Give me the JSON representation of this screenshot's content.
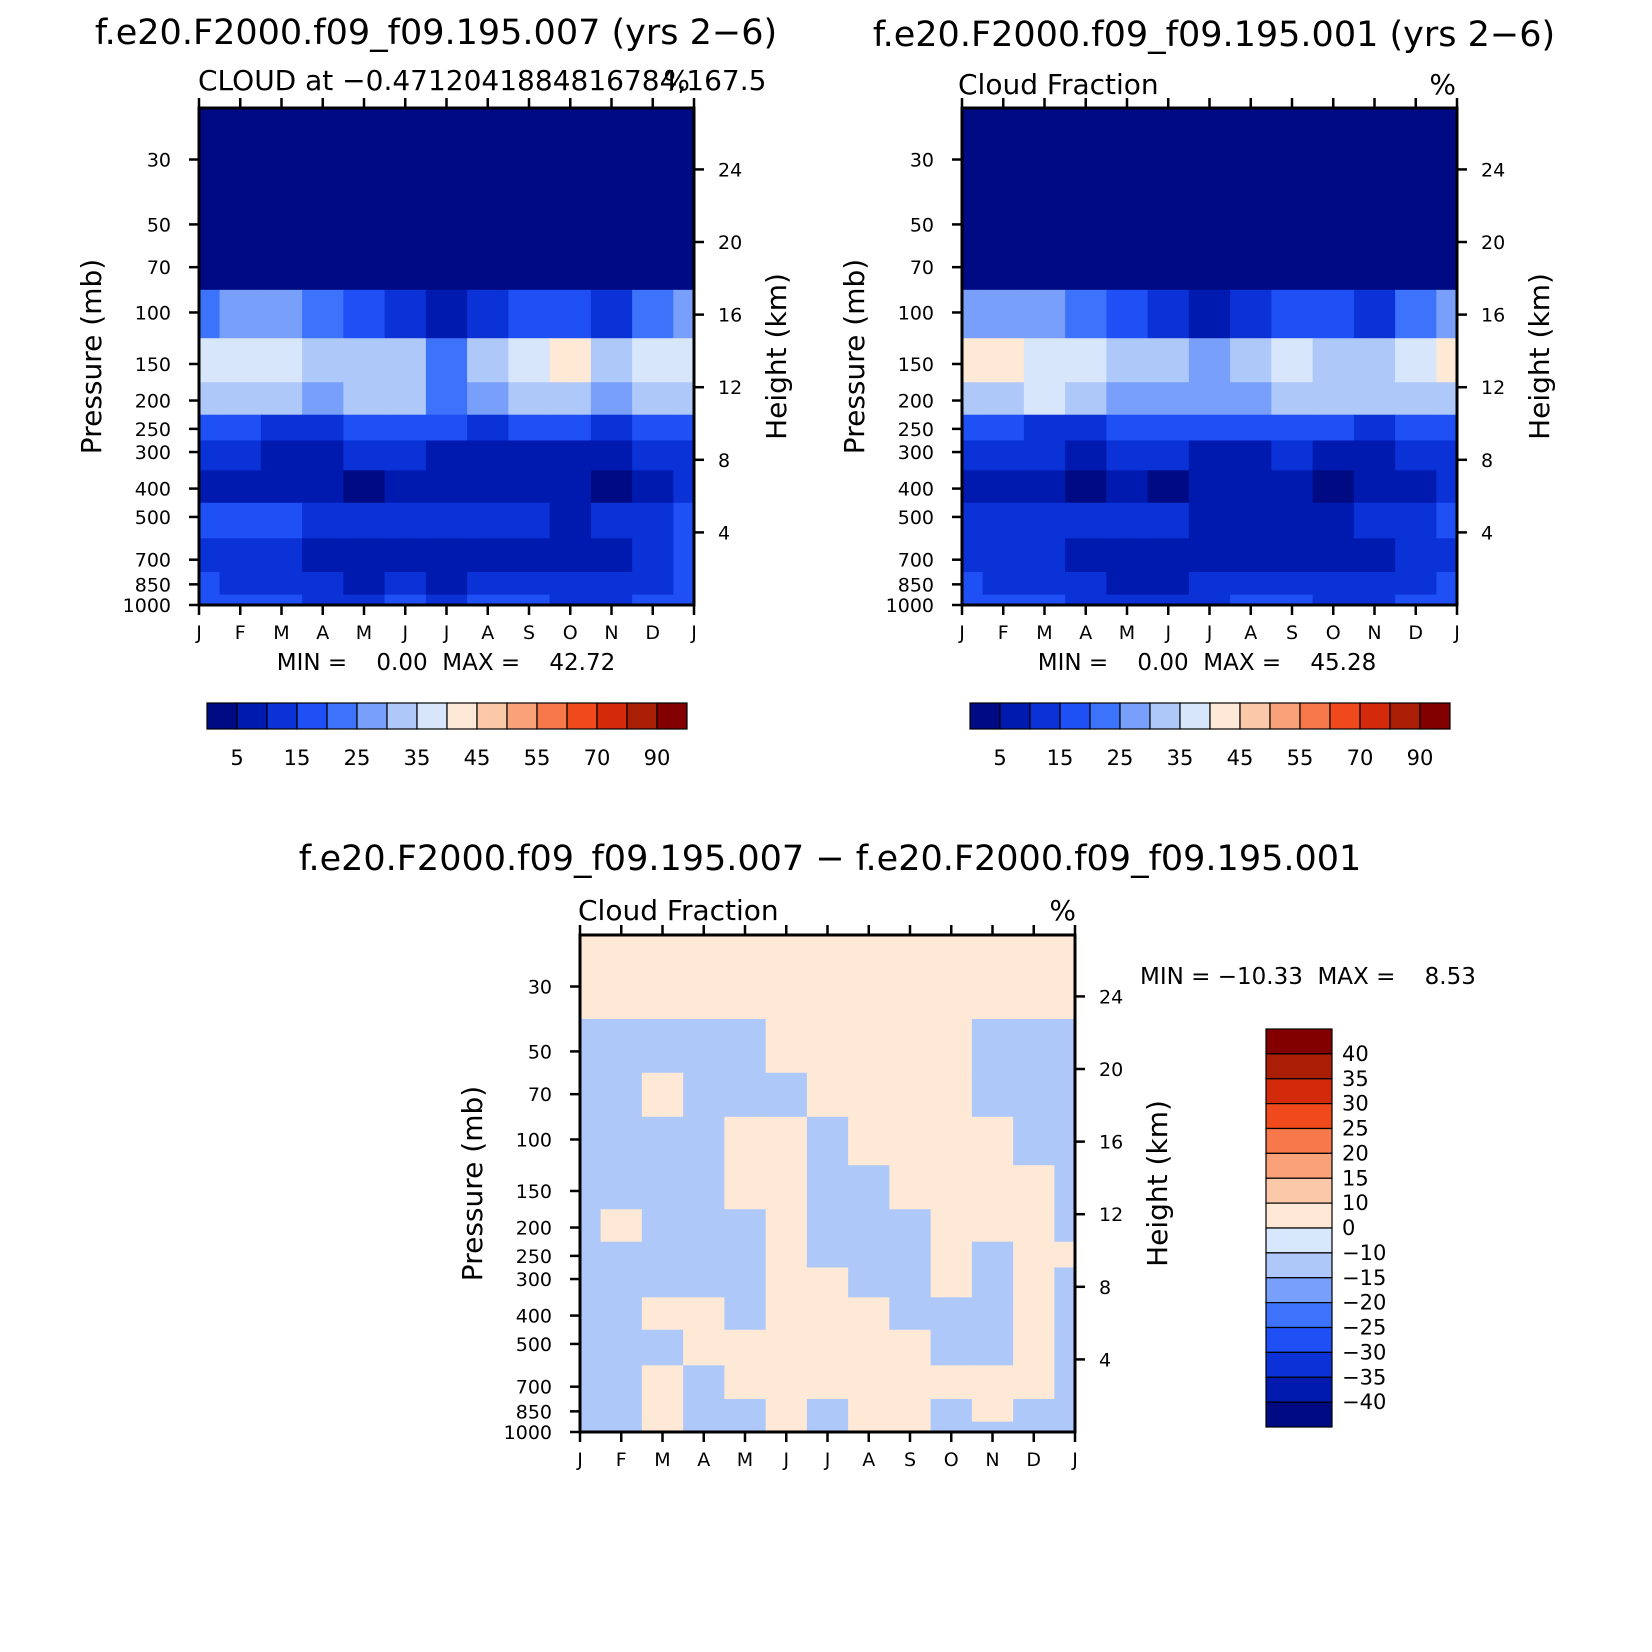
{
  "figure_titles": {
    "panel_a": "f.e20.F2000.f09_f09.195.007 (yrs 2−6)",
    "panel_b": "f.e20.F2000.f09_f09.195.001 (yrs 2−6)",
    "panel_c": "f.e20.F2000.f09_f09.195.007 − f.e20.F2000.f09_f09.195.001"
  },
  "colors": {
    "abs_scale": [
      "#000a82",
      "#001aaf",
      "#0a32d7",
      "#1e50f5",
      "#3c73fa",
      "#78a0fa",
      "#afc8fa",
      "#d7e6fa",
      "#fde9d6",
      "#fbc8aa",
      "#f9a27a",
      "#f7784a",
      "#f04a1c",
      "#d22a0a",
      "#aa1e05",
      "#820000"
    ],
    "diff_scale": [
      "#000a82",
      "#001aaf",
      "#0a32d7",
      "#1e50f5",
      "#3c73fa",
      "#78a0fa",
      "#afc8fa",
      "#d7e8fc",
      "#fde9d6",
      "#fbc8aa",
      "#f9a27a",
      "#f7784a",
      "#f04a1c",
      "#d22a0a",
      "#aa1e05",
      "#820000"
    ]
  },
  "chart_data": [
    {
      "type": "heatmap",
      "title": "f.e20.F2000.f09_f09.195.007 (yrs 2−6)",
      "subtitle_left": "CLOUD at −0.4712041884816784,167.5",
      "subtitle_right": "%",
      "xlabel": "",
      "ylabel": "Pressure (mb)",
      "ylabel_right": "Height (km)",
      "x_ticks": [
        "J",
        "F",
        "M",
        "A",
        "M",
        "J",
        "J",
        "A",
        "S",
        "O",
        "N",
        "D",
        "J"
      ],
      "y_ticks": [
        "30",
        "50",
        "70",
        "100",
        "150",
        "200",
        "250",
        "300",
        "400",
        "500",
        "700",
        "850",
        "1000"
      ],
      "y_ticks_right": [
        "24",
        "20",
        "16",
        "12",
        "8",
        "4"
      ],
      "ylim": [
        1000,
        20
      ],
      "stats": "MIN =    0.00  MAX =    42.72",
      "min": 0.0,
      "max": 42.72,
      "colorbar_labels": [
        "5",
        "15",
        "25",
        "35",
        "45",
        "55",
        "70",
        "90"
      ],
      "colorbar_levels": [
        0,
        5,
        10,
        15,
        20,
        25,
        30,
        35,
        40,
        45,
        50,
        55,
        60,
        70,
        80,
        90
      ],
      "values": [
        [
          0,
          0,
          0,
          0,
          0,
          0,
          0,
          0,
          0,
          0,
          0,
          0,
          0
        ],
        [
          0,
          0,
          0,
          0,
          0,
          0,
          0,
          0,
          0,
          0,
          0,
          0,
          0
        ],
        [
          3,
          3,
          3,
          2,
          0,
          0,
          0,
          0,
          0,
          0,
          0,
          3,
          4
        ],
        [
          24,
          26,
          25,
          21,
          16,
          11,
          8,
          12,
          16,
          17,
          12,
          21,
          28
        ],
        [
          36,
          39,
          35,
          31,
          31,
          31,
          22,
          31,
          37,
          41,
          30,
          36,
          37
        ],
        [
          30,
          33,
          31,
          29,
          30,
          30,
          22,
          25,
          30,
          32,
          28,
          33,
          30
        ],
        [
          16,
          16,
          14,
          14,
          16,
          16,
          15,
          14,
          15,
          15,
          14,
          15,
          16
        ],
        [
          10,
          10,
          9,
          9,
          10,
          10,
          9,
          9,
          9,
          9,
          8,
          10,
          11
        ],
        [
          8,
          9,
          8,
          7,
          3,
          8,
          9,
          9,
          9,
          6,
          3,
          8,
          11
        ],
        [
          15,
          17,
          16,
          13,
          11,
          13,
          12,
          11,
          11,
          9,
          10,
          14,
          18
        ],
        [
          14,
          14,
          12,
          9,
          7,
          7,
          7,
          7,
          7,
          7,
          9,
          12,
          15
        ],
        [
          15,
          14,
          13,
          10,
          9,
          11,
          9,
          11,
          12,
          10,
          10,
          13,
          15
        ],
        [
          16,
          16,
          15,
          14,
          14,
          15,
          14,
          15,
          15,
          14,
          14,
          15,
          16
        ]
      ]
    },
    {
      "type": "heatmap",
      "title": "f.e20.F2000.f09_f09.195.001 (yrs 2−6)",
      "subtitle_left": "Cloud Fraction",
      "subtitle_right": "%",
      "xlabel": "",
      "ylabel": "Pressure (mb)",
      "ylabel_right": "Height (km)",
      "x_ticks": [
        "J",
        "F",
        "M",
        "A",
        "M",
        "J",
        "J",
        "A",
        "S",
        "O",
        "N",
        "D",
        "J"
      ],
      "y_ticks": [
        "30",
        "50",
        "70",
        "100",
        "150",
        "200",
        "250",
        "300",
        "400",
        "500",
        "700",
        "850",
        "1000"
      ],
      "y_ticks_right": [
        "24",
        "20",
        "16",
        "12",
        "8",
        "4"
      ],
      "ylim": [
        1000,
        20
      ],
      "stats": "MIN =    0.00  MAX =    45.28",
      "min": 0.0,
      "max": 45.28,
      "colorbar_labels": [
        "5",
        "15",
        "25",
        "35",
        "45",
        "55",
        "70",
        "90"
      ],
      "colorbar_levels": [
        0,
        5,
        10,
        15,
        20,
        25,
        30,
        35,
        40,
        45,
        50,
        55,
        60,
        70,
        80,
        90
      ],
      "values": [
        [
          0,
          0,
          0,
          0,
          0,
          0,
          0,
          0,
          0,
          0,
          0,
          0,
          0
        ],
        [
          0,
          0,
          0,
          0,
          0,
          0,
          0,
          0,
          0,
          0,
          0,
          0,
          0
        ],
        [
          3,
          3,
          3,
          2,
          0,
          0,
          0,
          0,
          0,
          0,
          0,
          3,
          4
        ],
        [
          27,
          28,
          26,
          22,
          16,
          10,
          8,
          11,
          17,
          15,
          12,
          21,
          29
        ],
        [
          41,
          41,
          36,
          35,
          30,
          30,
          28,
          30,
          36,
          34,
          31,
          36,
          41
        ],
        [
          33,
          33,
          35,
          32,
          28,
          29,
          28,
          29,
          34,
          33,
          30,
          33,
          33
        ],
        [
          17,
          16,
          14,
          14,
          16,
          16,
          15,
          15,
          15,
          15,
          14,
          15,
          17
        ],
        [
          10,
          11,
          10,
          9,
          10,
          10,
          9,
          9,
          10,
          9,
          9,
          10,
          11
        ],
        [
          9,
          9,
          7,
          3,
          7,
          3,
          8,
          9,
          8,
          3,
          7,
          9,
          11
        ],
        [
          14,
          14,
          13,
          12,
          10,
          10,
          9,
          9,
          9,
          9,
          10,
          13,
          16
        ],
        [
          14,
          13,
          11,
          8,
          6,
          6,
          7,
          7,
          7,
          7,
          8,
          11,
          14
        ],
        [
          15,
          14,
          13,
          10,
          9,
          9,
          11,
          11,
          12,
          10,
          11,
          13,
          15
        ],
        [
          16,
          16,
          15,
          14,
          14,
          14,
          14,
          15,
          15,
          14,
          14,
          15,
          16
        ]
      ]
    },
    {
      "type": "heatmap",
      "title": "f.e20.F2000.f09_f09.195.007 − f.e20.F2000.f09_f09.195.001",
      "subtitle_left": "Cloud Fraction",
      "subtitle_right": "%",
      "xlabel": "",
      "ylabel": "Pressure (mb)",
      "ylabel_right": "Height (km)",
      "x_ticks": [
        "J",
        "F",
        "M",
        "A",
        "M",
        "J",
        "J",
        "A",
        "S",
        "O",
        "N",
        "D",
        "J"
      ],
      "y_ticks": [
        "30",
        "50",
        "70",
        "100",
        "150",
        "200",
        "250",
        "300",
        "400",
        "500",
        "700",
        "850",
        "1000"
      ],
      "y_ticks_right": [
        "24",
        "20",
        "16",
        "12",
        "8",
        "4"
      ],
      "ylim": [
        1000,
        20
      ],
      "stats": "MIN = −10.33  MAX =    8.53",
      "min": -10.33,
      "max": 8.53,
      "colorbar_labels": [
        "40",
        "35",
        "30",
        "25",
        "20",
        "15",
        "10",
        "0",
        "−10",
        "−15",
        "−20",
        "−25",
        "−30",
        "−35",
        "−40"
      ],
      "colorbar_levels": [
        -40,
        -35,
        -30,
        -25,
        -20,
        -15,
        -10,
        0,
        10,
        15,
        20,
        25,
        30,
        35,
        40
      ],
      "values": [
        [
          1,
          1,
          1,
          1,
          1,
          1,
          1,
          1,
          1,
          1,
          1,
          1,
          1
        ],
        [
          -1,
          -1,
          -1,
          -1,
          -1,
          1,
          1,
          1,
          1,
          1,
          -1,
          -1,
          -1
        ],
        [
          -1,
          -1,
          1,
          -1,
          -1,
          -1,
          1,
          1,
          1,
          1,
          -1,
          -1,
          -1
        ],
        [
          -1,
          -1,
          -1,
          -1,
          1,
          1,
          -1,
          1,
          1,
          1,
          1,
          -1,
          -1
        ],
        [
          -1,
          -1,
          -1,
          -1,
          1,
          1,
          -1,
          -1,
          1,
          1,
          1,
          1,
          -1
        ],
        [
          -1,
          1,
          -1,
          -1,
          -1,
          1,
          -1,
          -1,
          -1,
          1,
          1,
          1,
          -1
        ],
        [
          -1,
          -1,
          -1,
          -1,
          -1,
          1,
          -1,
          -1,
          -1,
          1,
          -1,
          1,
          1
        ],
        [
          -1,
          -1,
          -1,
          -1,
          -1,
          1,
          1,
          -1,
          -1,
          1,
          -1,
          1,
          -1
        ],
        [
          -1,
          -1,
          1,
          1,
          -1,
          1,
          1,
          1,
          -1,
          -1,
          -1,
          1,
          -1
        ],
        [
          -1,
          -1,
          -1,
          1,
          1,
          1,
          1,
          1,
          1,
          -1,
          -1,
          1,
          -1
        ],
        [
          -1,
          -1,
          1,
          -1,
          1,
          1,
          1,
          1,
          1,
          1,
          1,
          1,
          -1
        ],
        [
          -1,
          -1,
          1,
          -1,
          -1,
          1,
          -1,
          1,
          1,
          -1,
          1,
          -1,
          -1
        ],
        [
          -1,
          -1,
          1,
          -1,
          -1,
          1,
          -1,
          1,
          1,
          -1,
          -1,
          -1,
          -1
        ]
      ]
    }
  ]
}
